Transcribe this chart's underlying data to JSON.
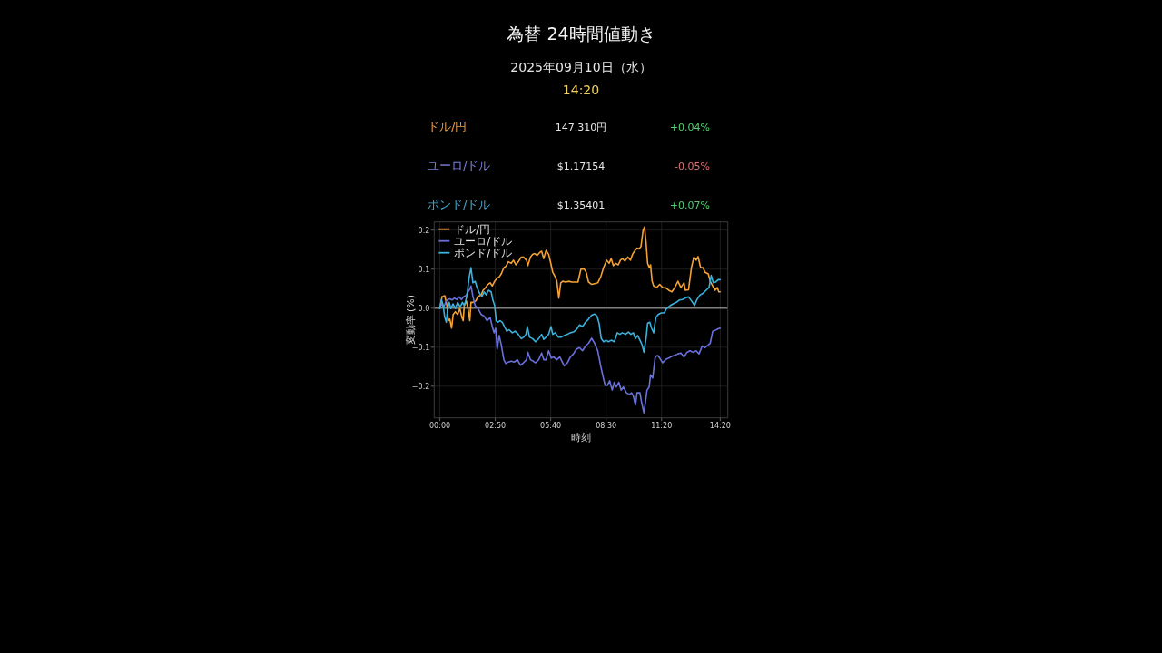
{
  "chart_data": [
    {
      "type": "other",
      "title": "為替 24時間値動き",
      "subtitle": "2025年09月10日（水）",
      "annotations": [
        "14:20",
        "ドル/円",
        "147.310円",
        "+0.04%",
        "ユーロ/ドル",
        "$1.17154",
        "-0.05%",
        "ポンド/ドル",
        "$1.35401",
        "+0.07%"
      ],
      "colors": [
        "#f0d060",
        "#e8a050",
        "#e6e6e6",
        "#50d070",
        "#7a80e0",
        "#e6e6e6",
        "#e07070",
        "#40a8d0",
        "#e6e6e6",
        "#50d070"
      ]
    },
    {
      "type": "line",
      "xlabel": "時刻",
      "ylabel": "変動率 (%)",
      "xlim": [
        -0.29,
        14.72
      ],
      "ylim": [
        -0.281,
        0.221
      ],
      "xticks": [
        {
          "value": 0,
          "label": "00:00"
        },
        {
          "value": 2.8333,
          "label": "02:50"
        },
        {
          "value": 5.6667,
          "label": "05:40"
        },
        {
          "value": 8.5,
          "label": "08:30"
        },
        {
          "value": 11.3333,
          "label": "11:20"
        },
        {
          "value": 14.3333,
          "label": "14:20"
        }
      ],
      "yticks": [
        {
          "value": -0.2,
          "label": "−0.2"
        },
        {
          "value": -0.1,
          "label": "−0.1"
        },
        {
          "value": 0,
          "label": "0.0"
        },
        0.1,
        0.2
      ],
      "grid": true,
      "legend": "top left",
      "line_style": "solid",
      "ref_lines": [
        {
          "axis": "y",
          "value": 0,
          "color": "#7f7f7f"
        }
      ],
      "series": [
        {
          "name": "ドル/円",
          "color": "#f4a236",
          "x": [
            0,
            0.11,
            0.25,
            0.36,
            0.43,
            0.51,
            0.6,
            0.68,
            0.79,
            0.91,
            1.02,
            1.13,
            1.19,
            1.25,
            1.35,
            1.44,
            1.53,
            1.59,
            1.72,
            1.84,
            1.95,
            2.11,
            2.21,
            2.34,
            2.46,
            2.57,
            2.68,
            2.8,
            2.93,
            3.03,
            3.14,
            3.27,
            3.39,
            3.5,
            3.65,
            3.76,
            3.89,
            4.01,
            4.16,
            4.27,
            4.43,
            4.5,
            4.63,
            4.74,
            4.85,
            4.97,
            5.09,
            5.2,
            5.31,
            5.43,
            5.56,
            5.67,
            5.77,
            5.9,
            5.98,
            6.08,
            6.18,
            6.28,
            6.44,
            6.59,
            6.75,
            6.9,
            7.06,
            7.21,
            7.37,
            7.48,
            7.6,
            7.76,
            7.91,
            8.07,
            8.22,
            8.37,
            8.53,
            8.65,
            8.76,
            8.87,
            8.99,
            9.12,
            9.23,
            9.33,
            9.46,
            9.61,
            9.74,
            9.85,
            9.95,
            10.08,
            10.19,
            10.28,
            10.39,
            10.46,
            10.54,
            10.62,
            10.7,
            10.77,
            10.85,
            10.93,
            11.08,
            11.24,
            11.39,
            11.55,
            11.7,
            11.86,
            12.01,
            12.17,
            12.32,
            12.48,
            12.55,
            12.71,
            12.86,
            12.99,
            13.1,
            13.2,
            13.33,
            13.45,
            13.56,
            13.72,
            13.82,
            13.95,
            14.07,
            14.18,
            14.26,
            14.33
          ],
          "values": [
            0,
            0.029,
            0.032,
            0.007,
            -0.032,
            -0.028,
            -0.051,
            -0.016,
            -0.009,
            -0.016,
            -0.001,
            -0.024,
            -0.032,
            0.007,
            0.019,
            -0.001,
            -0.032,
            0.015,
            0.015,
            0.019,
            0.03,
            0.034,
            0.046,
            0.053,
            0.061,
            0.065,
            0.057,
            0.069,
            0.077,
            0.08,
            0.088,
            0.104,
            0.108,
            0.119,
            0.115,
            0.123,
            0.111,
            0.119,
            0.131,
            0.131,
            0.123,
            0.109,
            0.131,
            0.138,
            0.14,
            0.135,
            0.142,
            0.146,
            0.127,
            0.148,
            0.138,
            0.115,
            0.092,
            0.08,
            0.069,
            0.026,
            0.065,
            0.069,
            0.067,
            0.069,
            0.067,
            0.067,
            0.067,
            0.1,
            0.101,
            0.092,
            0.067,
            0.061,
            0.063,
            0.065,
            0.08,
            0.104,
            0.123,
            0.115,
            0.127,
            0.109,
            0.115,
            0.111,
            0.123,
            0.127,
            0.121,
            0.131,
            0.123,
            0.138,
            0.146,
            0.154,
            0.152,
            0.158,
            0.2,
            0.208,
            0.169,
            0.115,
            0.104,
            0.111,
            0.069,
            0.057,
            0.053,
            0.061,
            0.053,
            0.052,
            0.046,
            0.042,
            0.053,
            0.069,
            0.053,
            0.065,
            0.046,
            0.047,
            0.104,
            0.131,
            0.123,
            0.132,
            0.104,
            0.104,
            0.092,
            0.088,
            0.069,
            0.057,
            0.046,
            0.053,
            0.042,
            0.042
          ]
        },
        {
          "name": "ユーロ/ドル",
          "color": "#6a70dc",
          "x": [
            0,
            0.09,
            0.2,
            0.33,
            0.4,
            0.51,
            0.63,
            0.74,
            0.87,
            0.98,
            1.1,
            1.21,
            1.33,
            1.44,
            1.53,
            1.59,
            1.69,
            1.8,
            1.95,
            2.11,
            2.26,
            2.41,
            2.57,
            2.68,
            2.77,
            2.85,
            2.93,
            3.03,
            3.14,
            3.27,
            3.37,
            3.5,
            3.65,
            3.81,
            3.96,
            4.12,
            4.27,
            4.43,
            4.5,
            4.63,
            4.78,
            4.89,
            5.05,
            5.2,
            5.31,
            5.43,
            5.56,
            5.7,
            5.82,
            5.98,
            6.13,
            6.24,
            6.36,
            6.52,
            6.67,
            6.83,
            6.98,
            7.14,
            7.29,
            7.45,
            7.6,
            7.76,
            7.91,
            8.07,
            8.22,
            8.34,
            8.45,
            8.56,
            8.68,
            8.81,
            8.92,
            9.02,
            9.15,
            9.27,
            9.38,
            9.54,
            9.69,
            9.8,
            9.89,
            10.0,
            10.08,
            10.23,
            10.31,
            10.43,
            10.51,
            10.59,
            10.7,
            10.77,
            10.88,
            11.01,
            11.13,
            11.24,
            11.39,
            11.55,
            11.7,
            11.86,
            12.01,
            12.17,
            12.32,
            12.48,
            12.63,
            12.79,
            12.94,
            13.1,
            13.25,
            13.41,
            13.56,
            13.72,
            13.82,
            13.95,
            14.1,
            14.23,
            14.33
          ],
          "values": [
            0,
            0.011,
            0.003,
            0.019,
            0.022,
            0.024,
            0.021,
            0.026,
            0.022,
            0.029,
            0.022,
            0.029,
            0.032,
            0.042,
            0.049,
            0.057,
            0.03,
            0.007,
            -0.001,
            -0.016,
            -0.02,
            -0.032,
            -0.024,
            -0.047,
            -0.063,
            -0.051,
            -0.105,
            -0.07,
            -0.094,
            -0.132,
            -0.142,
            -0.138,
            -0.136,
            -0.138,
            -0.132,
            -0.146,
            -0.14,
            -0.132,
            -0.113,
            -0.132,
            -0.136,
            -0.14,
            -0.132,
            -0.115,
            -0.132,
            -0.132,
            -0.109,
            -0.128,
            -0.125,
            -0.132,
            -0.125,
            -0.136,
            -0.148,
            -0.14,
            -0.125,
            -0.117,
            -0.105,
            -0.101,
            -0.109,
            -0.097,
            -0.09,
            -0.077,
            -0.09,
            -0.109,
            -0.148,
            -0.175,
            -0.198,
            -0.198,
            -0.186,
            -0.21,
            -0.19,
            -0.202,
            -0.19,
            -0.21,
            -0.202,
            -0.217,
            -0.221,
            -0.217,
            -0.225,
            -0.248,
            -0.217,
            -0.217,
            -0.241,
            -0.268,
            -0.241,
            -0.21,
            -0.202,
            -0.171,
            -0.179,
            -0.125,
            -0.121,
            -0.128,
            -0.14,
            -0.131,
            -0.128,
            -0.123,
            -0.121,
            -0.117,
            -0.115,
            -0.125,
            -0.113,
            -0.109,
            -0.113,
            -0.109,
            -0.117,
            -0.097,
            -0.101,
            -0.094,
            -0.09,
            -0.059,
            -0.056,
            -0.053,
            -0.051
          ]
        },
        {
          "name": "ポンド/ドル",
          "color": "#3cb1dc",
          "x": [
            0,
            0.08,
            0.17,
            0.25,
            0.33,
            0.4,
            0.48,
            0.56,
            0.67,
            0.79,
            0.91,
            1.04,
            1.15,
            1.25,
            1.38,
            1.49,
            1.59,
            1.69,
            1.8,
            1.9,
            2.03,
            2.15,
            2.26,
            2.37,
            2.49,
            2.62,
            2.72,
            2.8,
            2.88,
            2.96,
            3.08,
            3.19,
            3.3,
            3.42,
            3.54,
            3.7,
            3.85,
            4.01,
            4.16,
            4.29,
            4.4,
            4.47,
            4.58,
            4.74,
            4.89,
            5.05,
            5.2,
            5.31,
            5.43,
            5.56,
            5.68,
            5.77,
            5.9,
            6.05,
            6.21,
            6.36,
            6.52,
            6.67,
            6.83,
            6.98,
            7.14,
            7.29,
            7.45,
            7.6,
            7.76,
            7.91,
            8.03,
            8.14,
            8.25,
            8.37,
            8.5,
            8.62,
            8.76,
            8.92,
            9.07,
            9.2,
            9.33,
            9.49,
            9.64,
            9.77,
            9.89,
            10.0,
            10.11,
            10.23,
            10.34,
            10.43,
            10.54,
            10.62,
            10.73,
            10.82,
            10.93,
            11.04,
            11.16,
            11.32,
            11.47,
            11.59,
            11.78,
            11.93,
            12.09,
            12.24,
            12.4,
            12.55,
            12.71,
            12.86,
            13.02,
            13.14,
            13.3,
            13.45,
            13.61,
            13.76,
            13.87,
            13.98,
            14.1,
            14.23,
            14.33
          ],
          "values": [
            0,
            0.022,
            0.007,
            -0.024,
            -0.036,
            -0.001,
            0.015,
            -0.001,
            0.011,
            -0.001,
            0.015,
            0.003,
            0.015,
            0.007,
            0.03,
            0.077,
            0.104,
            0.065,
            0.069,
            0.053,
            0.038,
            0.03,
            0.042,
            0.034,
            0.046,
            0.042,
            0.019,
            0.007,
            -0.032,
            -0.036,
            -0.032,
            -0.036,
            -0.047,
            -0.059,
            -0.055,
            -0.063,
            -0.059,
            -0.067,
            -0.078,
            -0.074,
            -0.067,
            -0.047,
            -0.074,
            -0.078,
            -0.086,
            -0.078,
            -0.067,
            -0.08,
            -0.074,
            -0.067,
            -0.047,
            -0.067,
            -0.063,
            -0.074,
            -0.074,
            -0.07,
            -0.067,
            -0.063,
            -0.061,
            -0.055,
            -0.043,
            -0.047,
            -0.036,
            -0.028,
            -0.018,
            -0.015,
            -0.02,
            -0.039,
            -0.078,
            -0.086,
            -0.082,
            -0.086,
            -0.082,
            -0.086,
            -0.063,
            -0.067,
            -0.063,
            -0.067,
            -0.061,
            -0.067,
            -0.063,
            -0.078,
            -0.07,
            -0.082,
            -0.094,
            -0.113,
            -0.078,
            -0.039,
            -0.036,
            -0.051,
            -0.063,
            -0.024,
            -0.016,
            -0.012,
            -0.012,
            -0.001,
            0.007,
            0.011,
            0.015,
            0.021,
            0.022,
            0.026,
            0.029,
            0.019,
            0.007,
            0.022,
            0.034,
            0.038,
            0.046,
            0.053,
            0.084,
            0.065,
            0.067,
            0.073,
            0.073
          ]
        }
      ]
    }
  ]
}
